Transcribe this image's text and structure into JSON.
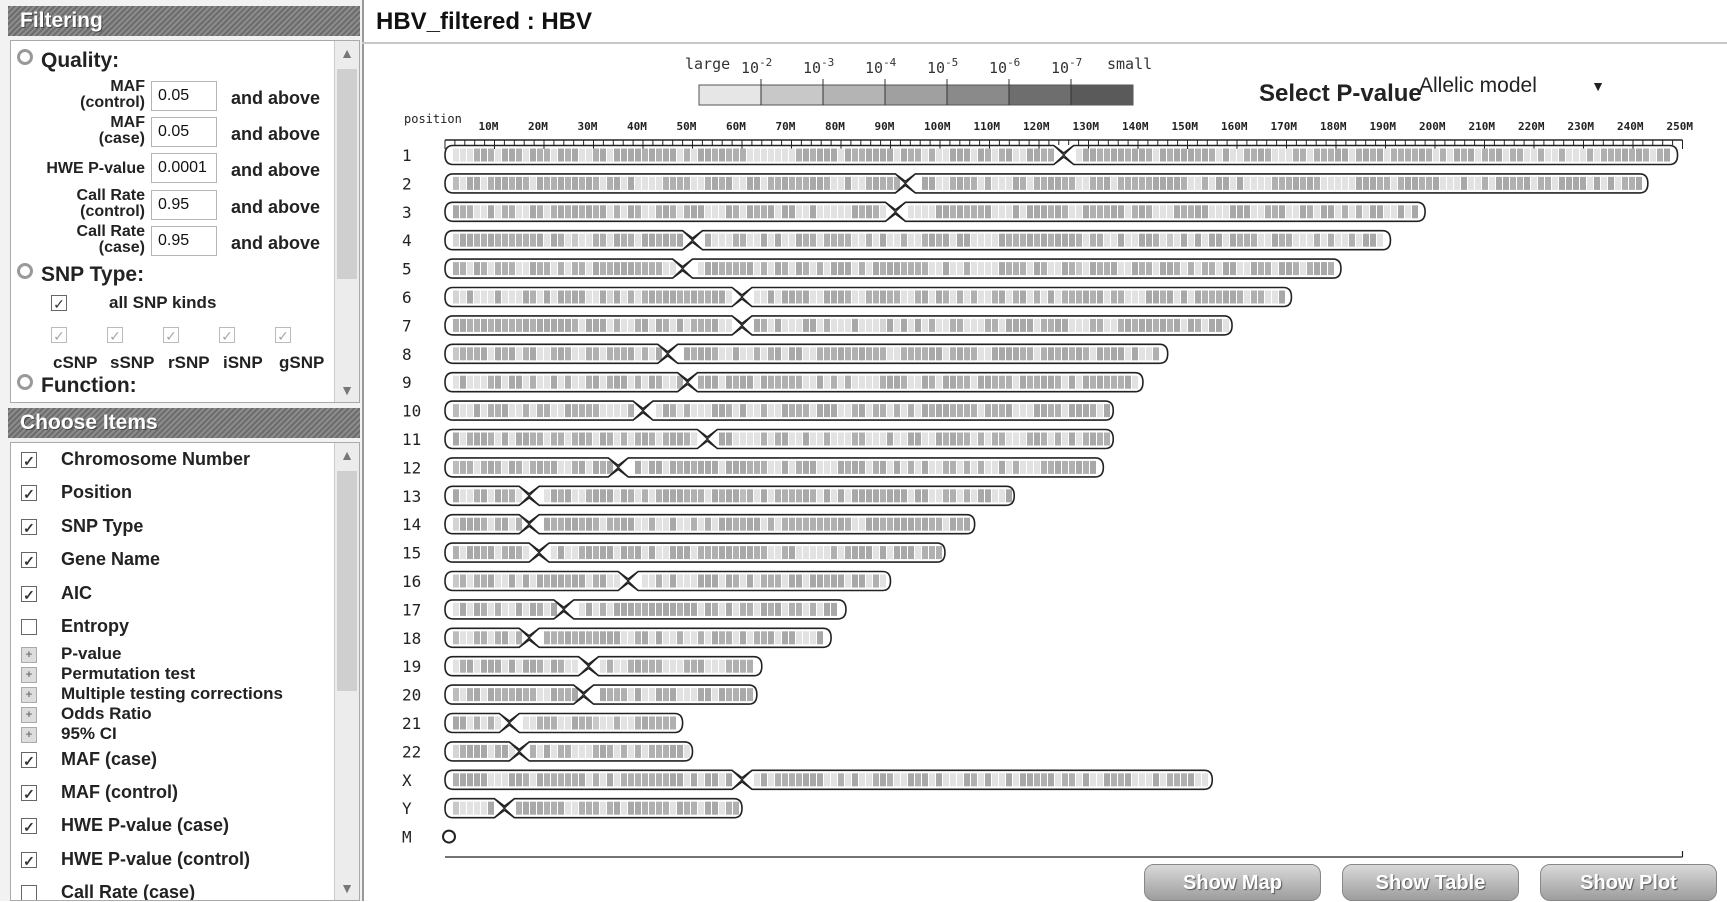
{
  "filtering": {
    "header": "Filtering",
    "quality_title": "Quality:",
    "rows": [
      {
        "label1": "MAF",
        "label2": "(control)",
        "value": "0.05",
        "suffix": "and above"
      },
      {
        "label1": "MAF",
        "label2": "(case)",
        "value": "0.05",
        "suffix": "and above"
      },
      {
        "label1": "HWE P-value",
        "label2": "",
        "value": "0.0001",
        "suffix": "and above"
      },
      {
        "label1": "Call Rate",
        "label2": "(control)",
        "value": "0.95",
        "suffix": "and above"
      },
      {
        "label1": "Call Rate",
        "label2": "(case)",
        "value": "0.95",
        "suffix": "and above"
      }
    ],
    "snp_type_title": "SNP Type:",
    "all_snp_label": "all SNP kinds",
    "snp_kinds": [
      "cSNP",
      "sSNP",
      "rSNP",
      "iSNP",
      "gSNP"
    ],
    "function_title": "Function:"
  },
  "choose_items": {
    "header": "Choose Items",
    "items": [
      {
        "label": "Chromosome Number",
        "state": "checked"
      },
      {
        "label": "Position",
        "state": "checked"
      },
      {
        "label": "SNP Type",
        "state": "checked"
      },
      {
        "label": "Gene Name",
        "state": "checked"
      },
      {
        "label": "AIC",
        "state": "checked"
      },
      {
        "label": "Entropy",
        "state": "unchecked"
      },
      {
        "label": "P-value",
        "state": "expand"
      },
      {
        "label": "Permutation test",
        "state": "expand"
      },
      {
        "label": "Multiple testing corrections",
        "state": "expand"
      },
      {
        "label": "Odds Ratio",
        "state": "expand"
      },
      {
        "label": "95% CI",
        "state": "expand"
      },
      {
        "label": "MAF (case)",
        "state": "checked"
      },
      {
        "label": "MAF (control)",
        "state": "checked"
      },
      {
        "label": "HWE P-value (case)",
        "state": "checked"
      },
      {
        "label": "HWE P-value (control)",
        "state": "checked"
      },
      {
        "label": "Call Rate (case)",
        "state": "unchecked"
      }
    ]
  },
  "main": {
    "title": "HBV_filtered : HBV",
    "legend": {
      "large": "large",
      "small": "small",
      "exponents": [
        "-2",
        "-3",
        "-4",
        "-5",
        "-6",
        "-7"
      ],
      "colors": [
        "#e6e6e6",
        "#c8c8c8",
        "#b4b4b4",
        "#a0a0a0",
        "#8a8a8a",
        "#6e6e6e",
        "#5a5a5a"
      ]
    },
    "pvalue_label": "Select P-value",
    "pvalue_selected": "Allelic model",
    "position_label": "position",
    "axis_ticks": [
      "10M",
      "20M",
      "30M",
      "40M",
      "50M",
      "60M",
      "70M",
      "80M",
      "90M",
      "100M",
      "110M",
      "120M",
      "130M",
      "140M",
      "150M",
      "160M",
      "170M",
      "180M",
      "190M",
      "200M",
      "210M",
      "220M",
      "230M",
      "240M",
      "250M"
    ],
    "chromosomes": [
      {
        "name": "1",
        "length": 249,
        "centromere": 125
      },
      {
        "name": "2",
        "length": 243,
        "centromere": 93
      },
      {
        "name": "3",
        "length": 198,
        "centromere": 91
      },
      {
        "name": "4",
        "length": 191,
        "centromere": 50
      },
      {
        "name": "5",
        "length": 181,
        "centromere": 48
      },
      {
        "name": "6",
        "length": 171,
        "centromere": 60
      },
      {
        "name": "7",
        "length": 159,
        "centromere": 60
      },
      {
        "name": "8",
        "length": 146,
        "centromere": 45
      },
      {
        "name": "9",
        "length": 141,
        "centromere": 49
      },
      {
        "name": "10",
        "length": 135,
        "centromere": 40
      },
      {
        "name": "11",
        "length": 135,
        "centromere": 53
      },
      {
        "name": "12",
        "length": 133,
        "centromere": 35
      },
      {
        "name": "13",
        "length": 115,
        "centromere": 17
      },
      {
        "name": "14",
        "length": 107,
        "centromere": 17
      },
      {
        "name": "15",
        "length": 101,
        "centromere": 19
      },
      {
        "name": "16",
        "length": 90,
        "centromere": 37
      },
      {
        "name": "17",
        "length": 81,
        "centromere": 24
      },
      {
        "name": "18",
        "length": 78,
        "centromere": 17
      },
      {
        "name": "19",
        "length": 64,
        "centromere": 29
      },
      {
        "name": "20",
        "length": 63,
        "centromere": 28
      },
      {
        "name": "21",
        "length": 48,
        "centromere": 13
      },
      {
        "name": "22",
        "length": 50,
        "centromere": 15
      },
      {
        "name": "X",
        "length": 155,
        "centromere": 60
      },
      {
        "name": "Y",
        "length": 60,
        "centromere": 12
      },
      {
        "name": "M",
        "length": 0,
        "centromere": 0
      }
    ]
  },
  "buttons": {
    "show_map": "Show Map",
    "show_table": "Show Table",
    "show_plot": "Show Plot"
  }
}
